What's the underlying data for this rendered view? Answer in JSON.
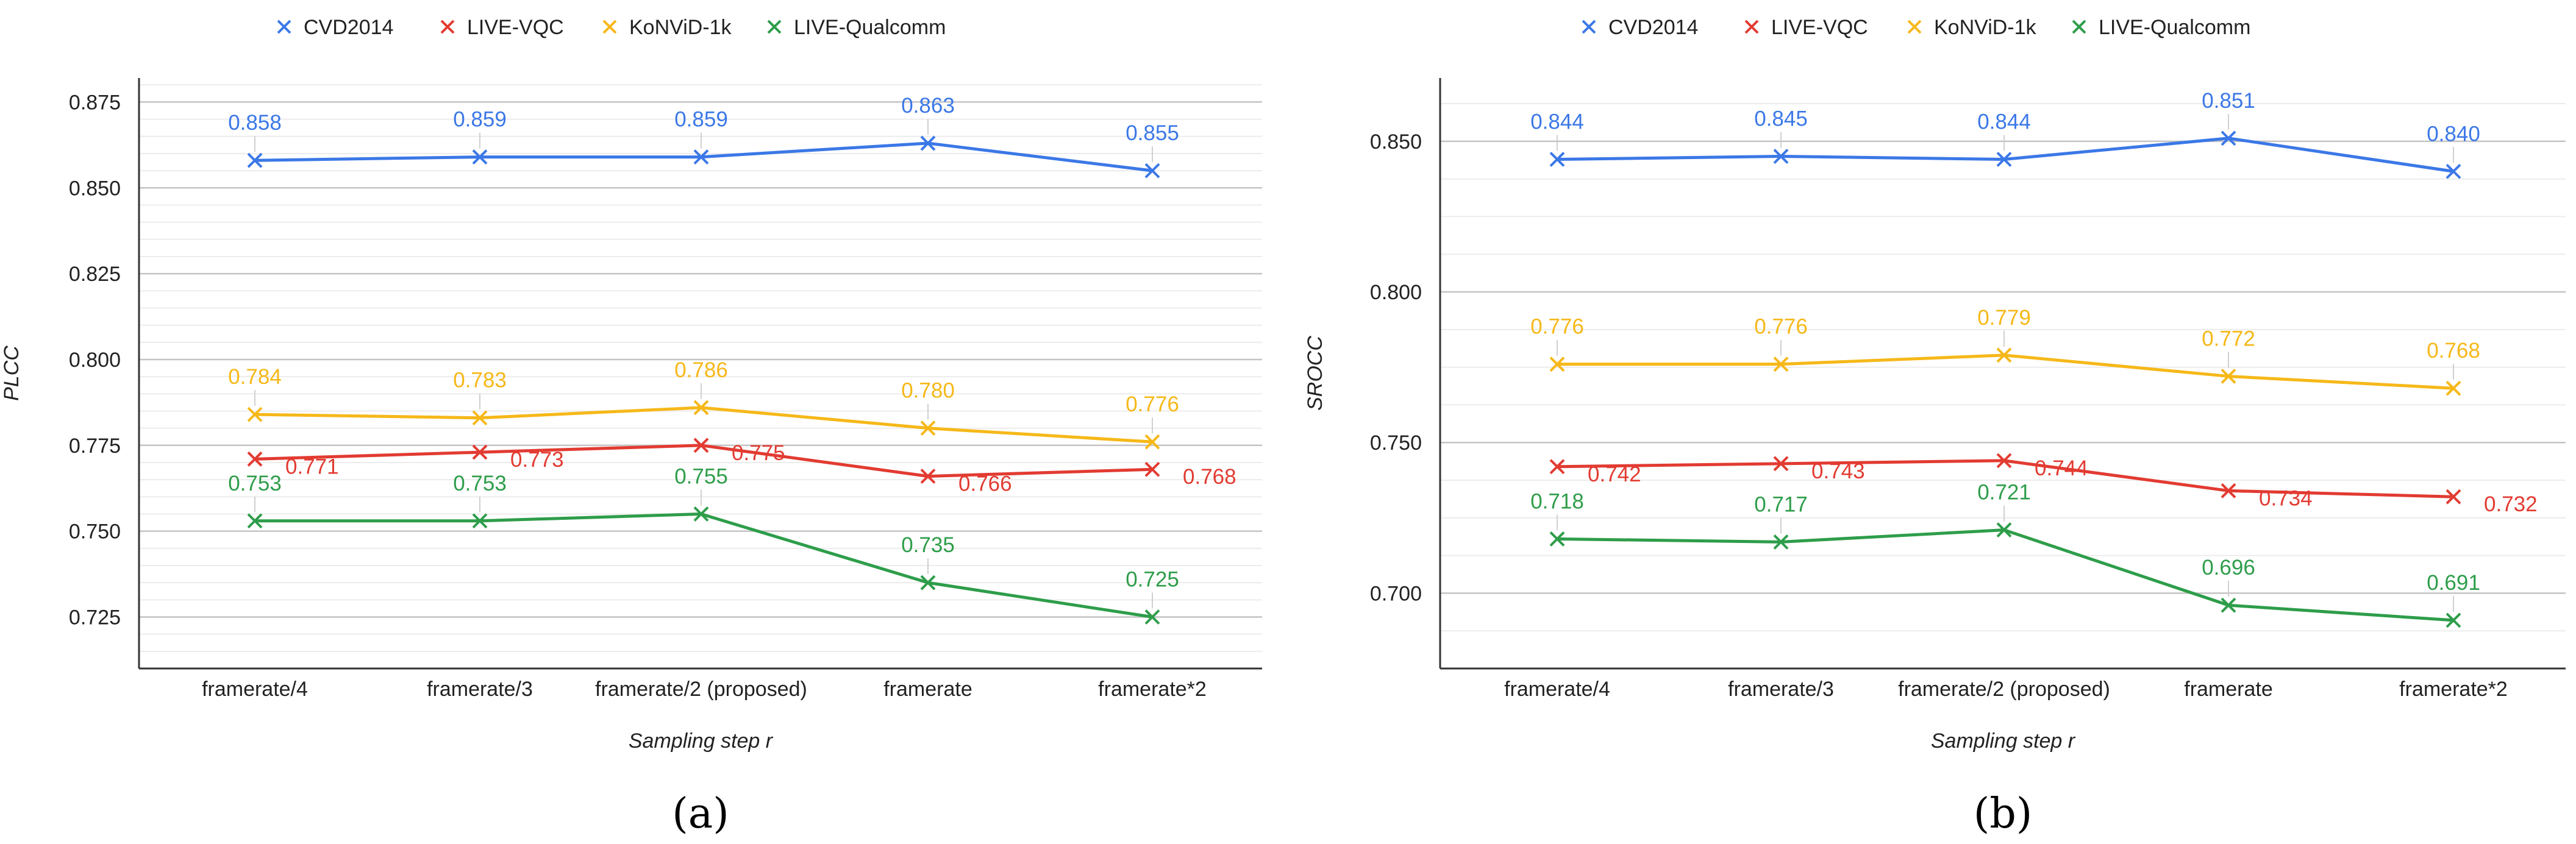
{
  "chart_data": [
    {
      "type": "line",
      "panel_label": "(a)",
      "title": "",
      "xlabel": "Sampling step r",
      "ylabel": "PLCC",
      "categories": [
        "framerate/4",
        "framerate/3",
        "framerate/2 (proposed)",
        "framerate",
        "framerate*2"
      ],
      "ylim": [
        0.71,
        0.882
      ],
      "yticks": [
        0.725,
        0.75,
        0.775,
        0.8,
        0.825,
        0.85,
        0.875
      ],
      "ytick_labels": [
        "0.725",
        "0.750",
        "0.775",
        "0.800",
        "0.825",
        "0.850",
        "0.875"
      ],
      "minor_step": 0.005,
      "legend": "top-center",
      "series": [
        {
          "name": "CVD2014",
          "color": "#3b78e7",
          "values": [
            0.858,
            0.859,
            0.859,
            0.863,
            0.855
          ],
          "labels": [
            "0.858",
            "0.859",
            "0.859",
            "0.863",
            "0.855"
          ],
          "label_pos": "above"
        },
        {
          "name": "LIVE-VQC",
          "color": "#e23b32",
          "values": [
            0.771,
            0.773,
            0.775,
            0.766,
            0.768
          ],
          "labels": [
            "0.771",
            "0.773",
            "0.775",
            "0.766",
            "0.768"
          ],
          "label_pos": "right"
        },
        {
          "name": "KoNViD-1k",
          "color": "#f6b819",
          "values": [
            0.784,
            0.783,
            0.786,
            0.78,
            0.776
          ],
          "labels": [
            "0.784",
            "0.783",
            "0.786",
            "0.780",
            "0.776"
          ],
          "label_pos": "above"
        },
        {
          "name": "LIVE-Qualcomm",
          "color": "#2e9d4a",
          "values": [
            0.753,
            0.753,
            0.755,
            0.735,
            0.725
          ],
          "labels": [
            "0.753",
            "0.753",
            "0.755",
            "0.735",
            "0.725"
          ],
          "label_pos": "above"
        }
      ]
    },
    {
      "type": "line",
      "panel_label": "(b)",
      "title": "",
      "xlabel": "Sampling step r",
      "ylabel": "SROCC",
      "categories": [
        "framerate/4",
        "framerate/3",
        "framerate/2 (proposed)",
        "framerate",
        "framerate*2"
      ],
      "ylim": [
        0.675,
        0.871
      ],
      "yticks": [
        0.7,
        0.75,
        0.8,
        0.85
      ],
      "ytick_labels": [
        "0.700",
        "0.750",
        "0.800",
        "0.850"
      ],
      "minor_step": 0.0125,
      "legend": "top-center",
      "series": [
        {
          "name": "CVD2014",
          "color": "#3b78e7",
          "values": [
            0.844,
            0.845,
            0.844,
            0.851,
            0.84
          ],
          "labels": [
            "0.844",
            "0.845",
            "0.844",
            "0.851",
            "0.840"
          ],
          "label_pos": "above"
        },
        {
          "name": "LIVE-VQC",
          "color": "#e23b32",
          "values": [
            0.742,
            0.743,
            0.744,
            0.734,
            0.732
          ],
          "labels": [
            "0.742",
            "0.743",
            "0.744",
            "0.734",
            "0.732"
          ],
          "label_pos": "right"
        },
        {
          "name": "KoNViD-1k",
          "color": "#f6b819",
          "values": [
            0.776,
            0.776,
            0.779,
            0.772,
            0.768
          ],
          "labels": [
            "0.776",
            "0.776",
            "0.779",
            "0.772",
            "0.768"
          ],
          "label_pos": "above"
        },
        {
          "name": "LIVE-Qualcomm",
          "color": "#2e9d4a",
          "values": [
            0.718,
            0.717,
            0.721,
            0.696,
            0.691
          ],
          "labels": [
            "0.718",
            "0.717",
            "0.721",
            "0.696",
            "0.691"
          ],
          "label_pos": "above"
        }
      ]
    }
  ]
}
